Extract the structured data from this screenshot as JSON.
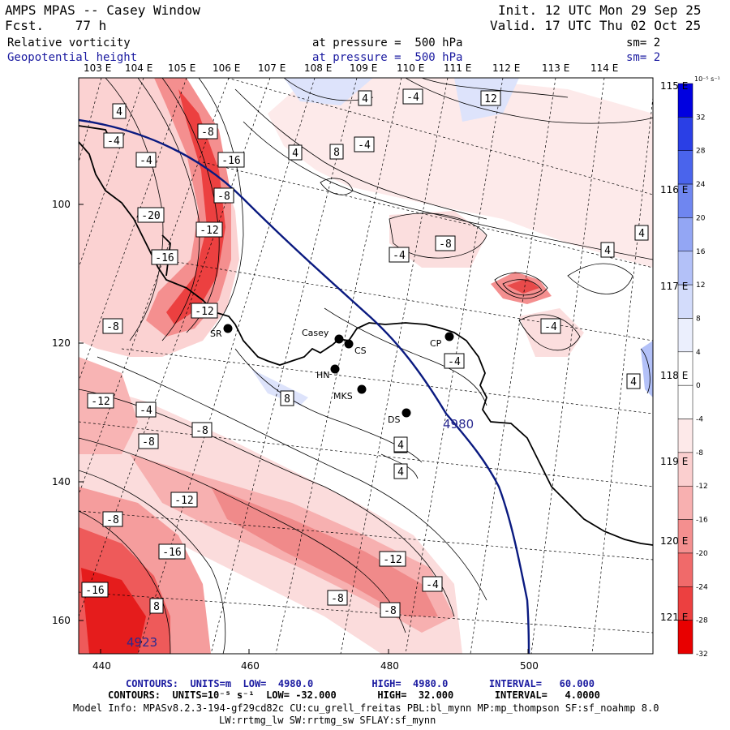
{
  "header": {
    "title": "AMPS MPAS -- Casey Window",
    "forecast": "Fcst.    77 h",
    "init": "Init. 12 UTC Mon 29 Sep 25",
    "valid": "Valid. 17 UTC Thu 02 Oct 25",
    "field1_name": "Relative vorticity",
    "field1_level": "at pressure =  500 hPa",
    "field1_sm": "sm= 2",
    "field2_name": "Geopotential height",
    "field2_level": "at pressure =  500 hPa",
    "field2_sm": "sm= 2"
  },
  "longitude_labels_top": [
    "103 E",
    "104 E",
    "105 E",
    "106 E",
    "107 E",
    "108 E",
    "109 E",
    "110 E",
    "111 E",
    "112 E",
    "113 E",
    "114 E"
  ],
  "longitude_labels_right": [
    "115 E",
    "116 E",
    "117 E",
    "118 E",
    "119 E",
    "120 E",
    "121 E"
  ],
  "x_axis_ticks": [
    "440",
    "460",
    "480",
    "500"
  ],
  "y_axis_ticks": [
    "100",
    "120",
    "140",
    "160"
  ],
  "colorbar": {
    "unit_label": "10⁻⁵ s⁻¹",
    "values": [
      "32",
      "28",
      "24",
      "20",
      "16",
      "12",
      "8",
      "4",
      "0",
      "-4",
      "-8",
      "-12",
      "-16",
      "-20",
      "-24",
      "-28",
      "-32"
    ],
    "colors": [
      "#0000e0",
      "#2a3fe6",
      "#4a64ec",
      "#6f86f0",
      "#93a6f4",
      "#b3c1f8",
      "#d3dcfb",
      "#ebeffd",
      "#ffffff",
      "#ffffff",
      "#fde9e9",
      "#fbcfcf",
      "#f8b0b0",
      "#f48f8f",
      "#f06a6a",
      "#ec4040",
      "#e80000"
    ]
  },
  "stations": [
    {
      "label": "SR"
    },
    {
      "label": "Casey"
    },
    {
      "label": "CS"
    },
    {
      "label": "HN"
    },
    {
      "label": "MKS"
    },
    {
      "label": "CP"
    },
    {
      "label": "DS"
    }
  ],
  "height_contour_labels": [
    "4980",
    "4923"
  ],
  "vorticity_labels": [
    "4",
    "-8",
    "-4",
    "-4",
    "-16",
    "-8",
    "-20",
    "-12",
    "-16",
    "-12",
    "-8",
    "-12",
    "-4",
    "-8",
    "-8",
    "-12",
    "-8",
    "-16",
    "-16",
    "8",
    "4",
    "-4",
    "4",
    "8",
    "-4",
    "12",
    "4",
    "-4",
    "-8",
    "4",
    "-4",
    "4",
    "-4",
    "4",
    "8",
    "4",
    "4",
    "-12",
    "-4",
    "-8",
    "-8"
  ],
  "footer": {
    "line1": "CONTOURS:  UNITS=m  LOW=  4980.0          HIGH=  4980.0       INTERVAL=   60.000",
    "line2": "CONTOURS:  UNITS=10⁻⁵ s⁻¹  LOW= -32.000       HIGH=  32.000       INTERVAL=   4.0000",
    "line3": "Model Info: MPASv8.2.3-194-gf29cd82c CU:cu_grell_freitas PBL:bl_mynn MP:mp_thompson SF:sf_noahmp 8.0",
    "line4": "LW:rrtmg_lw SW:rrtmg_sw SFLAY:sf_mynn"
  }
}
